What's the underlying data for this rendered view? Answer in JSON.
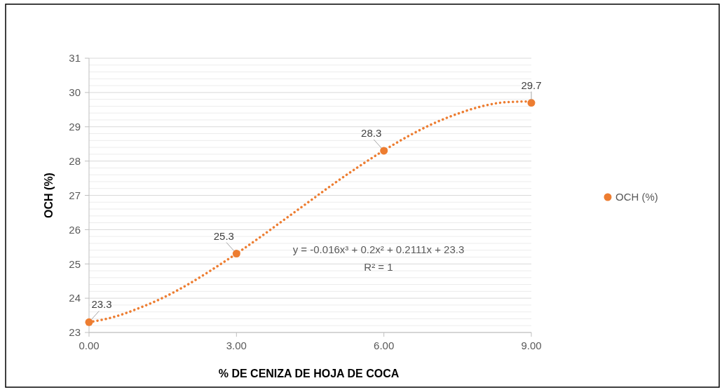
{
  "chart_data": {
    "type": "scatter",
    "xlabel": "% DE CENIZA DE HOJA DE COCA",
    "ylabel": "OCH (%)",
    "xlim": [
      0,
      9
    ],
    "xticks": [
      {
        "value": 0,
        "label": "0.00"
      },
      {
        "value": 3,
        "label": "3.00"
      },
      {
        "value": 6,
        "label": "6.00"
      },
      {
        "value": 9,
        "label": "9.00"
      }
    ],
    "ylim": [
      23,
      31
    ],
    "yticks": [
      23,
      {
        "value": 23.2,
        "label": null
      },
      {
        "value": 23.4,
        "label": null
      },
      {
        "value": 23.6,
        "label": null
      },
      {
        "value": 23.8,
        "label": null
      },
      24,
      {
        "value": 24.2,
        "label": null
      },
      {
        "value": 24.4,
        "label": null
      },
      {
        "value": 24.6,
        "label": null
      },
      {
        "value": 24.8,
        "label": null
      },
      25,
      {
        "value": 25.2,
        "label": null
      },
      {
        "value": 25.4,
        "label": null
      },
      {
        "value": 25.6,
        "label": null
      },
      {
        "value": 25.8,
        "label": null
      },
      26,
      {
        "value": 26.2,
        "label": null
      },
      {
        "value": 26.4,
        "label": null
      },
      {
        "value": 26.6,
        "label": null
      },
      {
        "value": 26.8,
        "label": null
      },
      27,
      {
        "value": 27.2,
        "label": null
      },
      {
        "value": 27.4,
        "label": null
      },
      {
        "value": 27.6,
        "label": null
      },
      {
        "value": 27.8,
        "label": null
      },
      28,
      {
        "value": 28.2,
        "label": null
      },
      {
        "value": 28.4,
        "label": null
      },
      {
        "value": 28.6,
        "label": null
      },
      {
        "value": 28.8,
        "label": null
      },
      29,
      {
        "value": 29.2,
        "label": null
      },
      {
        "value": 29.4,
        "label": null
      },
      {
        "value": 29.6,
        "label": null
      },
      {
        "value": 29.8,
        "label": null
      },
      30,
      {
        "value": 30.2,
        "label": null
      },
      {
        "value": 30.4,
        "label": null
      },
      {
        "value": 30.6,
        "label": null
      },
      {
        "value": 30.8,
        "label": null
      },
      31
    ],
    "grid": "y",
    "legend": "right",
    "marker": "circle",
    "series": [
      {
        "name": "OCH (%)",
        "color": "#ed7d31",
        "x": [
          0,
          3,
          6,
          9
        ],
        "values": [
          23.3,
          25.3,
          28.3,
          29.7
        ],
        "value_labels": [
          "23.3",
          "25.3",
          "28.3",
          "29.7"
        ]
      },
      {
        "type": "line",
        "color": "#ed7d31",
        "line_style": "dotted",
        "marker": "none",
        "x": [
          0,
          0.5,
          1,
          1.5,
          2,
          2.5,
          3,
          3.5,
          4,
          4.5,
          5,
          5.5,
          6,
          6.5,
          7,
          7.5,
          8,
          8.5,
          9
        ],
        "values": [
          23.3,
          23.45,
          23.7,
          24.01,
          24.39,
          24.83,
          25.3,
          25.8,
          26.32,
          26.84,
          27.36,
          27.85,
          28.31,
          28.73,
          29.09,
          29.38,
          29.6,
          29.72,
          29.74
        ]
      }
    ],
    "annotations": [
      "y = -0.016x³ + 0.2x² + 0.2111x + 23.3",
      "R² = 1"
    ]
  }
}
